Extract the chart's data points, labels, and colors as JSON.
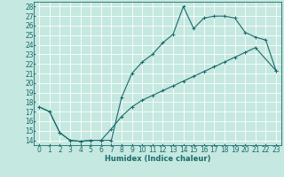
{
  "xlabel": "Humidex (Indice chaleur)",
  "bg_color": "#c5e8e0",
  "grid_color": "#ffffff",
  "line_color": "#1a6b6b",
  "xlim": [
    -0.5,
    23.5
  ],
  "ylim": [
    13.5,
    28.5
  ],
  "xticks": [
    0,
    1,
    2,
    3,
    4,
    5,
    6,
    7,
    8,
    9,
    10,
    11,
    12,
    13,
    14,
    15,
    16,
    17,
    18,
    19,
    20,
    21,
    22,
    23
  ],
  "yticks": [
    14,
    15,
    16,
    17,
    18,
    19,
    20,
    21,
    22,
    23,
    24,
    25,
    26,
    27,
    28
  ],
  "line1_x": [
    0,
    1,
    2,
    3,
    4,
    5,
    6,
    7,
    8,
    9,
    10,
    11,
    12,
    13,
    14,
    15,
    16,
    17,
    18,
    19,
    20,
    21,
    22,
    23
  ],
  "line1_y": [
    17.5,
    17.0,
    14.8,
    14.0,
    13.9,
    14.0,
    14.0,
    14.0,
    18.5,
    21.0,
    22.2,
    23.0,
    24.2,
    25.1,
    28.0,
    25.7,
    26.8,
    27.0,
    27.0,
    26.8,
    25.3,
    24.8,
    24.5,
    21.3
  ],
  "line2_x": [
    0,
    1,
    2,
    3,
    4,
    5,
    6,
    7,
    8,
    9,
    10,
    11,
    12,
    13,
    14,
    15,
    16,
    17,
    18,
    19,
    20,
    21,
    23
  ],
  "line2_y": [
    17.5,
    17.0,
    14.8,
    14.0,
    13.9,
    14.0,
    14.0,
    15.2,
    16.5,
    17.5,
    18.2,
    18.7,
    19.2,
    19.7,
    20.2,
    20.7,
    21.2,
    21.7,
    22.2,
    22.7,
    23.2,
    23.7,
    21.3
  ],
  "font_size_label": 6,
  "font_size_tick": 5.5
}
